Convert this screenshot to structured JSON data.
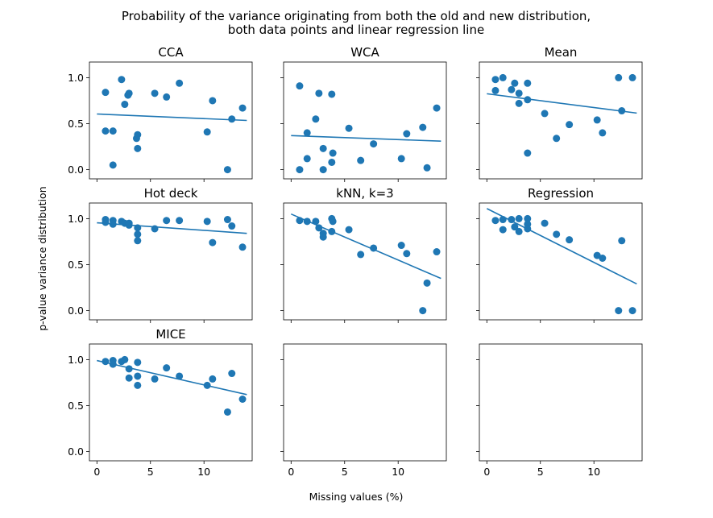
{
  "figure": {
    "title_line1": "Probability of the variance originating from both the old and new distribution,",
    "title_line2": "both data points and linear regression line",
    "xlabel": "Missing values (%)",
    "ylabel": "p-value variance distribution",
    "point_color": "#1f77b4",
    "line_color": "#1f77b4"
  },
  "chart_data": [
    {
      "type": "scatter",
      "title": "CCA",
      "xlim": [
        -0.7,
        14.5
      ],
      "ylim": [
        -0.1,
        1.17
      ],
      "xticks": [
        0,
        5,
        10
      ],
      "yticks": [
        0.0,
        0.5,
        1.0
      ],
      "points": [
        [
          0.8,
          0.84
        ],
        [
          2.3,
          0.98
        ],
        [
          2.6,
          0.71
        ],
        [
          2.9,
          0.81
        ],
        [
          3.0,
          0.83
        ],
        [
          5.4,
          0.83
        ],
        [
          6.5,
          0.79
        ],
        [
          7.7,
          0.94
        ],
        [
          10.8,
          0.75
        ],
        [
          0.8,
          0.42
        ],
        [
          1.5,
          0.42
        ],
        [
          3.8,
          0.38
        ],
        [
          3.7,
          0.34
        ],
        [
          3.8,
          0.23
        ],
        [
          1.5,
          0.05
        ],
        [
          10.3,
          0.41
        ],
        [
          12.6,
          0.55
        ],
        [
          13.6,
          0.67
        ],
        [
          12.2,
          0.0
        ]
      ],
      "regression": [
        [
          0,
          0.605
        ],
        [
          14,
          0.535
        ]
      ]
    },
    {
      "type": "scatter",
      "title": "WCA",
      "xlim": [
        -0.7,
        14.5
      ],
      "ylim": [
        -0.1,
        1.17
      ],
      "xticks": [
        0,
        5,
        10
      ],
      "yticks": [
        0.0,
        0.5,
        1.0
      ],
      "points": [
        [
          0.8,
          0.91
        ],
        [
          2.6,
          0.83
        ],
        [
          3.8,
          0.82
        ],
        [
          2.3,
          0.55
        ],
        [
          1.5,
          0.4
        ],
        [
          5.4,
          0.45
        ],
        [
          3.0,
          0.23
        ],
        [
          3.9,
          0.18
        ],
        [
          1.5,
          0.12
        ],
        [
          3.8,
          0.08
        ],
        [
          6.5,
          0.1
        ],
        [
          7.7,
          0.28
        ],
        [
          0.8,
          0.0
        ],
        [
          3.0,
          0.0
        ],
        [
          10.8,
          0.39
        ],
        [
          12.3,
          0.46
        ],
        [
          13.6,
          0.67
        ],
        [
          10.3,
          0.12
        ],
        [
          12.7,
          0.02
        ]
      ],
      "regression": [
        [
          0,
          0.37
        ],
        [
          14,
          0.31
        ]
      ]
    },
    {
      "type": "scatter",
      "title": "Mean",
      "xlim": [
        -0.7,
        14.5
      ],
      "ylim": [
        -0.1,
        1.17
      ],
      "xticks": [
        0,
        5,
        10
      ],
      "yticks": [
        0.0,
        0.5,
        1.0
      ],
      "points": [
        [
          0.8,
          0.98
        ],
        [
          1.5,
          1.0
        ],
        [
          0.8,
          0.86
        ],
        [
          2.3,
          0.87
        ],
        [
          2.6,
          0.94
        ],
        [
          3.0,
          0.83
        ],
        [
          3.8,
          0.94
        ],
        [
          3.0,
          0.72
        ],
        [
          3.8,
          0.76
        ],
        [
          5.4,
          0.61
        ],
        [
          7.7,
          0.49
        ],
        [
          6.5,
          0.34
        ],
        [
          3.8,
          0.18
        ],
        [
          10.3,
          0.54
        ],
        [
          10.8,
          0.4
        ],
        [
          12.3,
          1.0
        ],
        [
          13.6,
          1.0
        ],
        [
          12.6,
          0.64
        ]
      ],
      "regression": [
        [
          0,
          0.825
        ],
        [
          14,
          0.615
        ]
      ]
    },
    {
      "type": "scatter",
      "title": "Hot deck",
      "xlim": [
        -0.7,
        14.5
      ],
      "ylim": [
        -0.1,
        1.17
      ],
      "xticks": [
        0,
        5,
        10
      ],
      "yticks": [
        0.0,
        0.5,
        1.0
      ],
      "points": [
        [
          0.8,
          0.99
        ],
        [
          0.8,
          0.96
        ],
        [
          1.5,
          0.98
        ],
        [
          1.5,
          0.94
        ],
        [
          2.3,
          0.97
        ],
        [
          2.6,
          0.95
        ],
        [
          3.0,
          0.95
        ],
        [
          3.0,
          0.93
        ],
        [
          3.8,
          0.9
        ],
        [
          3.8,
          0.83
        ],
        [
          3.8,
          0.76
        ],
        [
          5.4,
          0.89
        ],
        [
          6.5,
          0.98
        ],
        [
          7.7,
          0.98
        ],
        [
          10.3,
          0.97
        ],
        [
          10.8,
          0.74
        ],
        [
          12.2,
          0.99
        ],
        [
          12.6,
          0.92
        ],
        [
          13.6,
          0.69
        ]
      ],
      "regression": [
        [
          0,
          0.955
        ],
        [
          14,
          0.84
        ]
      ]
    },
    {
      "type": "scatter",
      "title": "kNN, k=3",
      "xlim": [
        -0.7,
        14.5
      ],
      "ylim": [
        -0.1,
        1.17
      ],
      "xticks": [
        0,
        5,
        10
      ],
      "yticks": [
        0.0,
        0.5,
        1.0
      ],
      "points": [
        [
          0.8,
          0.98
        ],
        [
          1.5,
          0.97
        ],
        [
          2.3,
          0.97
        ],
        [
          2.6,
          0.9
        ],
        [
          3.0,
          0.84
        ],
        [
          3.0,
          0.8
        ],
        [
          3.8,
          1.0
        ],
        [
          3.9,
          0.97
        ],
        [
          3.8,
          0.86
        ],
        [
          5.4,
          0.88
        ],
        [
          6.5,
          0.61
        ],
        [
          7.7,
          0.68
        ],
        [
          10.3,
          0.71
        ],
        [
          10.8,
          0.62
        ],
        [
          12.7,
          0.3
        ],
        [
          13.6,
          0.64
        ],
        [
          12.3,
          0.0
        ]
      ],
      "regression": [
        [
          0,
          1.05
        ],
        [
          14,
          0.35
        ]
      ]
    },
    {
      "type": "scatter",
      "title": "Regression",
      "xlim": [
        -0.7,
        14.5
      ],
      "ylim": [
        -0.1,
        1.17
      ],
      "xticks": [
        0,
        5,
        10
      ],
      "yticks": [
        0.0,
        0.5,
        1.0
      ],
      "points": [
        [
          0.8,
          0.98
        ],
        [
          1.5,
          0.99
        ],
        [
          1.5,
          0.88
        ],
        [
          2.3,
          0.99
        ],
        [
          2.6,
          0.91
        ],
        [
          3.0,
          1.0
        ],
        [
          3.0,
          0.86
        ],
        [
          3.8,
          1.0
        ],
        [
          3.8,
          0.94
        ],
        [
          3.8,
          0.89
        ],
        [
          5.4,
          0.95
        ],
        [
          6.5,
          0.83
        ],
        [
          7.7,
          0.77
        ],
        [
          10.3,
          0.6
        ],
        [
          10.8,
          0.57
        ],
        [
          12.6,
          0.76
        ],
        [
          12.3,
          0.0
        ],
        [
          13.6,
          0.0
        ]
      ],
      "regression": [
        [
          0,
          1.11
        ],
        [
          14,
          0.29
        ]
      ]
    },
    {
      "type": "scatter",
      "title": "MICE",
      "xlim": [
        -0.7,
        14.5
      ],
      "ylim": [
        -0.1,
        1.17
      ],
      "xticks": [
        0,
        5,
        10
      ],
      "yticks": [
        0.0,
        0.5,
        1.0
      ],
      "points": [
        [
          0.8,
          0.98
        ],
        [
          1.5,
          0.99
        ],
        [
          1.5,
          0.95
        ],
        [
          2.3,
          0.98
        ],
        [
          2.6,
          1.0
        ],
        [
          3.0,
          0.9
        ],
        [
          3.0,
          0.8
        ],
        [
          3.8,
          0.97
        ],
        [
          3.8,
          0.82
        ],
        [
          3.8,
          0.72
        ],
        [
          5.4,
          0.79
        ],
        [
          6.5,
          0.91
        ],
        [
          7.7,
          0.82
        ],
        [
          10.3,
          0.72
        ],
        [
          10.8,
          0.79
        ],
        [
          12.6,
          0.85
        ],
        [
          12.2,
          0.43
        ],
        [
          13.6,
          0.57
        ]
      ],
      "regression": [
        [
          0,
          0.99
        ],
        [
          14,
          0.62
        ]
      ]
    },
    {
      "type": "scatter",
      "title": "",
      "xlim": [
        -0.7,
        14.5
      ],
      "ylim": [
        -0.1,
        1.17
      ],
      "xticks": [
        0,
        5,
        10
      ],
      "yticks": [
        0.0,
        0.5,
        1.0
      ],
      "points": [],
      "regression": []
    },
    {
      "type": "scatter",
      "title": "",
      "xlim": [
        -0.7,
        14.5
      ],
      "ylim": [
        -0.1,
        1.17
      ],
      "xticks": [
        0,
        5,
        10
      ],
      "yticks": [
        0.0,
        0.5,
        1.0
      ],
      "points": [],
      "regression": []
    }
  ]
}
